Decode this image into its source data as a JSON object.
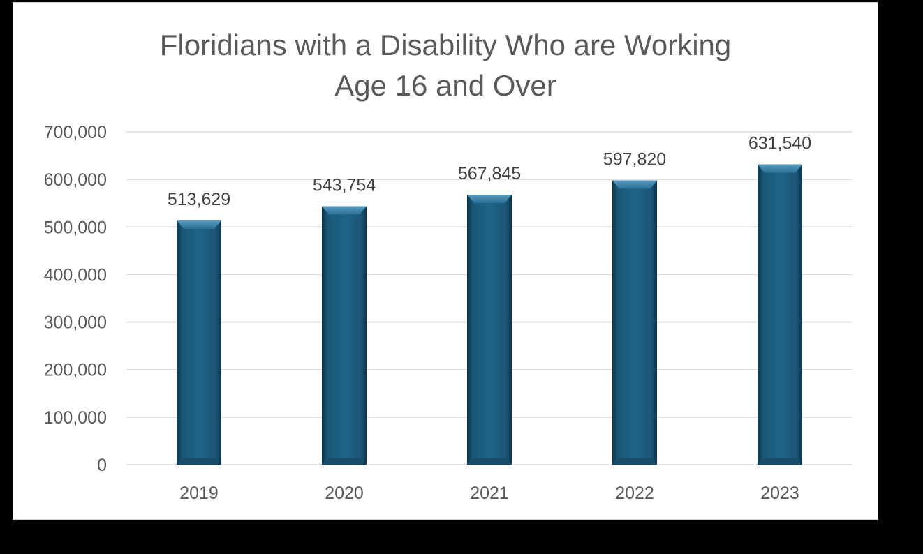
{
  "chart_data": {
    "type": "bar",
    "title_lines": [
      "Floridians with a Disability Who are Working",
      "Age 16 and Over"
    ],
    "xlabel": "",
    "ylabel": "",
    "categories": [
      "2019",
      "2020",
      "2021",
      "2022",
      "2023"
    ],
    "values": [
      513629,
      543754,
      567845,
      597820,
      631540
    ],
    "data_labels": [
      "513,629",
      "543,754",
      "567,845",
      "597,820",
      "631,540"
    ],
    "yticks": [
      0,
      100000,
      200000,
      300000,
      400000,
      500000,
      600000,
      700000
    ],
    "ytick_labels": [
      "0",
      "100,000",
      "200,000",
      "300,000",
      "400,000",
      "500,000",
      "600,000",
      "700,000"
    ],
    "ylim": [
      0,
      700000
    ],
    "grid": true,
    "legend": "none",
    "colors": {
      "bar": "#1f5f80",
      "bar_dark": "#0e3a52",
      "bar_light": "#4a8db0",
      "grid": "#d9d9d9",
      "text": "#595959",
      "background_frame": "#000000"
    }
  }
}
